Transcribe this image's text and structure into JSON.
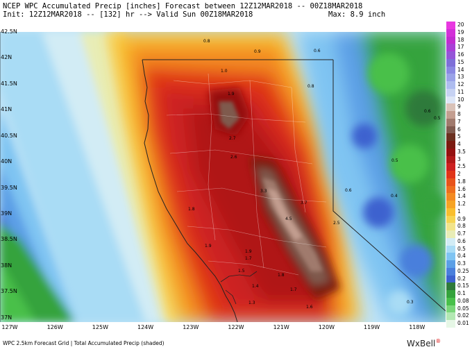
{
  "header": {
    "line1": "NCEP WPC Accumulated Precip [inches] Forecast between 12Z12MAR2018 -- 00Z18MAR2018",
    "line2": "Init: 12Z12MAR2018 -- [132] hr --> Valid Sun 00Z18MAR2018",
    "max": "Max: 8.9 inch"
  },
  "axes": {
    "latitudes": [
      "42.5N",
      "42N",
      "41.5N",
      "41N",
      "40.5N",
      "40N",
      "39.5N",
      "39N",
      "38.5N",
      "38N",
      "37.5N",
      "37N"
    ],
    "longitudes": [
      "127W",
      "126W",
      "125W",
      "124W",
      "123W",
      "122W",
      "121W",
      "120W",
      "119W",
      "118W"
    ]
  },
  "legend": {
    "labels": [
      "20",
      "19",
      "18",
      "17",
      "16",
      "15",
      "14",
      "13",
      "12",
      "11",
      "10",
      "9",
      "8",
      "7",
      "6",
      "5",
      "4",
      "3.5",
      "3",
      "2.5",
      "2",
      "1.8",
      "1.6",
      "1.4",
      "1.2",
      "1",
      "0.9",
      "0.8",
      "0.7",
      "0.6",
      "0.5",
      "0.4",
      "0.3",
      "0.25",
      "0.2",
      "0.15",
      "0.1",
      "0.08",
      "0.05",
      "0.02",
      "0.01"
    ],
    "colors": [
      "#e838e0",
      "#d22fd8",
      "#c12cd0",
      "#a93fd6",
      "#9555d8",
      "#7e6fd8",
      "#8a88e2",
      "#9aa2e8",
      "#aebcef",
      "#c6d2f3",
      "#dde6f7",
      "#d9c2b8",
      "#c39e90",
      "#a07a6d",
      "#7f5a4e",
      "#6b3020",
      "#7a1a10",
      "#941010",
      "#b01818",
      "#cc2020",
      "#e03418",
      "#e8531b",
      "#ee6e1e",
      "#f38a22",
      "#f6a424",
      "#f9be2e",
      "#f6d452",
      "#f2e48a",
      "#e8edb6",
      "#d2ecf5",
      "#a9dcf5",
      "#7fc4f2",
      "#5b9fe6",
      "#4a7fdc",
      "#3c62cf",
      "#2f7a3a",
      "#34a33c",
      "#48c04a",
      "#7ad67a",
      "#b3e8b3",
      "#e6f7e6"
    ]
  },
  "annotations": [
    "0.8",
    "0.9",
    "0.6",
    "1.0",
    "0.8",
    "1.9",
    "2.7",
    "2.6",
    "3.3",
    "3.7",
    "4.5",
    "2.5",
    "1.8",
    "1.9",
    "1.9",
    "1.7",
    "1.5",
    "1.4",
    "1.8",
    "1.7",
    "1.6",
    "1.3",
    "0.6",
    "0.5",
    "0.4",
    "0.5",
    "0.6",
    "0.3"
  ],
  "footer": "WPC 2.5km Forecast Grid | Total Accumulated Precip (shaded)",
  "brand": {
    "name": "WxBell",
    "mark": "®"
  }
}
